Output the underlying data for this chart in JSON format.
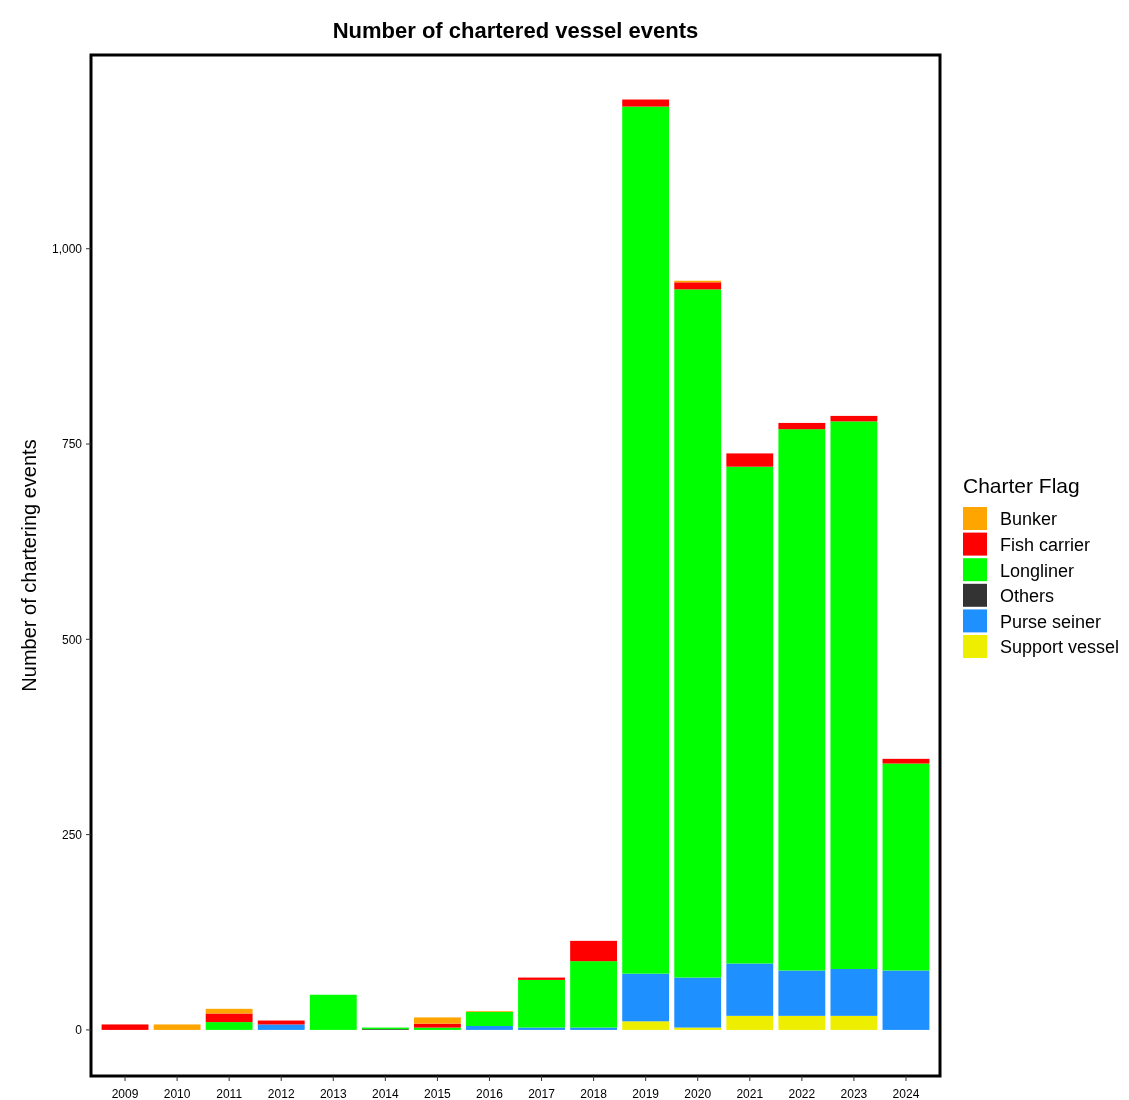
{
  "chart_data": {
    "type": "bar",
    "title": "Number of chartered vessel events",
    "ylabel": "Number of chartering events",
    "legend_title": "Charter Flag",
    "legend": "right",
    "grid": false,
    "stacked": true,
    "categories": [
      "2009",
      "2010",
      "2011",
      "2012",
      "2013",
      "2014",
      "2015",
      "2016",
      "2017",
      "2018",
      "2019",
      "2020",
      "2021",
      "2022",
      "2023",
      "2024"
    ],
    "ylim": [
      -59,
      1248
    ],
    "yticks": [
      0,
      250,
      500,
      750,
      {
        "value": 1000,
        "label": "1,000"
      }
    ],
    "series": [
      {
        "name": "Support vessel",
        "color": "#eeee00",
        "values": [
          0,
          0,
          0,
          0,
          0,
          0,
          0,
          0,
          0,
          0,
          11,
          3,
          18,
          18,
          18,
          0
        ]
      },
      {
        "name": "Purse seiner",
        "color": "#1e90ff",
        "values": [
          0,
          0,
          0,
          7,
          0,
          0,
          0,
          5,
          3,
          3,
          61,
          64,
          67,
          58,
          60,
          76
        ]
      },
      {
        "name": "Others",
        "color": "#333333",
        "values": [
          0,
          0,
          0,
          0,
          0,
          1,
          0,
          0,
          0,
          0,
          0,
          0,
          0,
          0,
          0,
          0
        ]
      },
      {
        "name": "Longliner",
        "color": "#00ff00",
        "values": [
          0,
          0,
          10,
          0,
          45,
          2,
          3,
          18,
          61,
          85,
          1110,
          881,
          636,
          693,
          701,
          265
        ]
      },
      {
        "name": "Fish carrier",
        "color": "#ff0000",
        "values": [
          7,
          0,
          11,
          5,
          0,
          0,
          5,
          0,
          3,
          26,
          9,
          9,
          17,
          8,
          7,
          6
        ]
      },
      {
        "name": "Bunker",
        "color": "#ffa500",
        "values": [
          0,
          7,
          6,
          0,
          0,
          0,
          8,
          1,
          0,
          0,
          0,
          2,
          0,
          0,
          0,
          0
        ]
      }
    ]
  }
}
